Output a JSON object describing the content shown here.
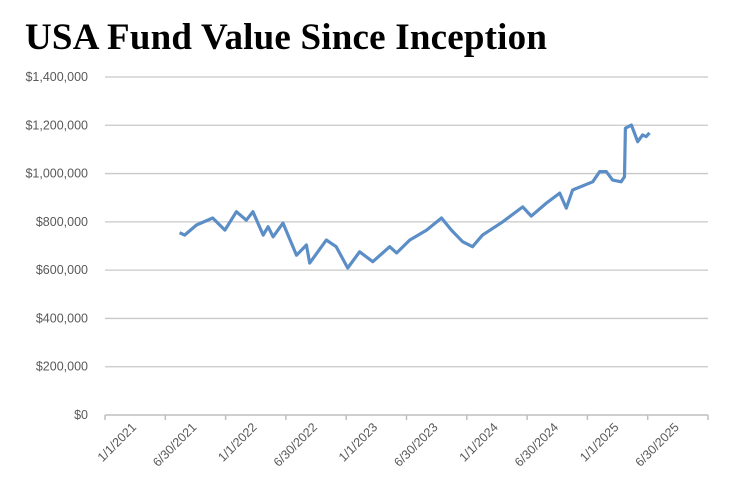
{
  "chart_data": {
    "type": "line",
    "title": "USA Fund Value Since Inception",
    "xlabel": "",
    "ylabel": "",
    "xlim": [
      "2021-01-01",
      "2026-01-01"
    ],
    "ylim": [
      0,
      1400000
    ],
    "grid": true,
    "x_tick_labels": [
      "1/1/2021",
      "6/30/2021",
      "1/1/2022",
      "6/30/2022",
      "1/1/2023",
      "6/30/2023",
      "1/1/2024",
      "6/30/2024",
      "1/1/2025",
      "6/30/2025"
    ],
    "y_tick_values": [
      0,
      200000,
      400000,
      600000,
      800000,
      1000000,
      1200000,
      1400000
    ],
    "y_tick_labels": [
      "$0",
      "$200,000",
      "$400,000",
      "$600,000",
      "$800,000",
      "$1,000,000",
      "$1,200,000",
      "$1,400,000"
    ],
    "line_color": "#5b8ec6",
    "series": [
      {
        "x": [
          "2021-08-15",
          "2021-08-30",
          "2021-10-05",
          "2021-11-23",
          "2021-12-30",
          "2022-02-03",
          "2022-03-05",
          "2022-03-25",
          "2022-04-25",
          "2022-05-10",
          "2022-05-25",
          "2022-06-24",
          "2022-08-04",
          "2022-09-03",
          "2022-09-13",
          "2022-11-02",
          "2022-12-02",
          "2023-01-06",
          "2023-02-11",
          "2023-03-23",
          "2023-05-13",
          "2023-06-03",
          "2023-07-13",
          "2023-09-02",
          "2023-10-17",
          "2023-11-16",
          "2023-12-20",
          "2024-01-19",
          "2024-02-18",
          "2024-04-19",
          "2024-06-19",
          "2024-07-15",
          "2024-08-30",
          "2024-10-09",
          "2024-10-29",
          "2024-11-17",
          "2025-01-17",
          "2025-02-07",
          "2025-02-27",
          "2025-03-18",
          "2025-04-13",
          "2025-04-23",
          "2025-04-26",
          "2025-05-14",
          "2025-06-02",
          "2025-06-17",
          "2025-06-28",
          "2025-07-08"
        ],
        "y": [
          755000,
          745000,
          787000,
          816000,
          766000,
          842000,
          807000,
          842000,
          745000,
          780000,
          738000,
          795000,
          662000,
          704000,
          629000,
          725000,
          697000,
          609000,
          676000,
          635000,
          697000,
          671000,
          725000,
          766000,
          816000,
          766000,
          718000,
          697000,
          745000,
          800000,
          862000,
          824000,
          878000,
          919000,
          857000,
          932000,
          966000,
          1008000,
          1008000,
          973000,
          966000,
          987000,
          1188000,
          1201000,
          1132000,
          1160000,
          1153000,
          1169000
        ]
      }
    ]
  }
}
